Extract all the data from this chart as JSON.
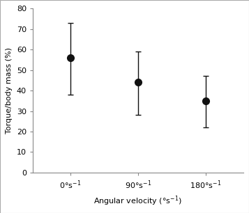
{
  "x_positions": [
    0,
    1,
    2
  ],
  "x_labels": [
    "0°s-1",
    "90°s-1",
    "180°s-1"
  ],
  "means": [
    56,
    44,
    35
  ],
  "upper_errors": [
    17,
    15,
    12
  ],
  "lower_errors": [
    18,
    16,
    13
  ],
  "ylabel": "Torque/body mass (%)",
  "xlabel": "Angular velocity (°s-1)",
  "ylim": [
    0,
    80
  ],
  "yticks": [
    0,
    10,
    20,
    30,
    40,
    50,
    60,
    70,
    80
  ],
  "marker_color": "#111111",
  "marker_size": 7,
  "capsize": 3,
  "linewidth": 1.0,
  "background_color": "#ffffff",
  "tick_fontsize": 8,
  "label_fontsize": 8
}
